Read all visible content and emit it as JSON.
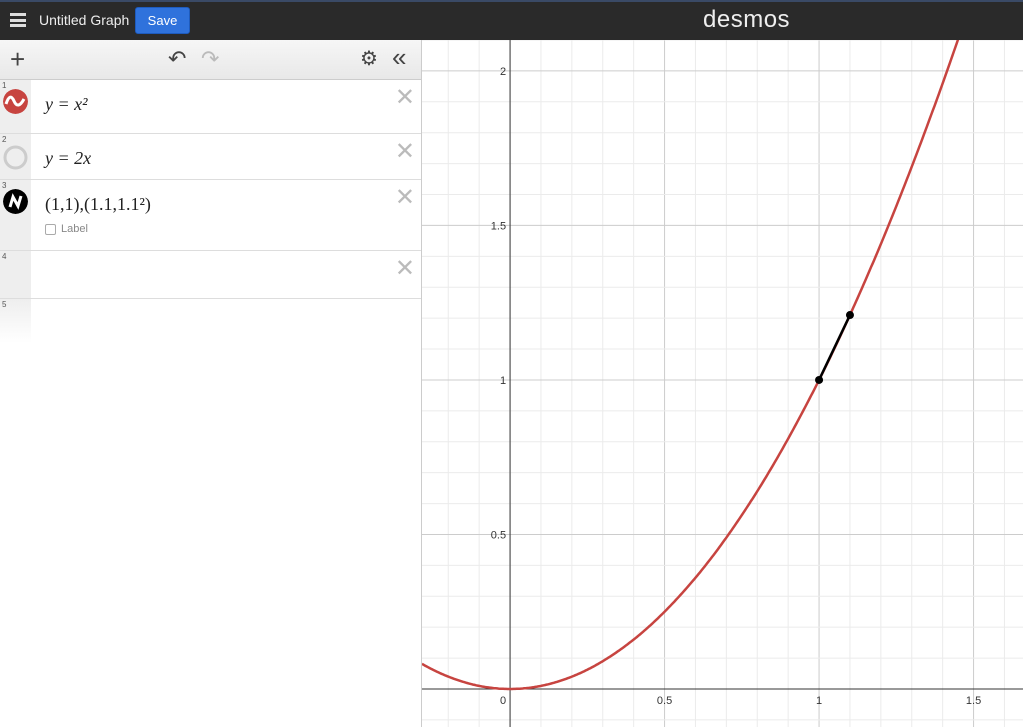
{
  "header": {
    "title": "Untitled Graph",
    "save_label": "Save",
    "logo": "desmos"
  },
  "toolbar": {
    "add": "+",
    "undo": "↶",
    "redo": "↷",
    "settings": "⚙",
    "collapse": "«"
  },
  "expressions": [
    {
      "n": "1",
      "latex": "y = x²",
      "color": "#c74440",
      "icon": "wave-icon"
    },
    {
      "n": "2",
      "latex": "y  =  2x",
      "color": "#cccccc",
      "icon": "hidden-circle-icon"
    },
    {
      "n": "3",
      "latex": "(1,1),(1.1,1.1²)",
      "color": "#000000",
      "icon": "points-icon",
      "label_checkbox": "Label",
      "checked": false
    },
    {
      "n": "4",
      "latex": ""
    },
    {
      "n": "5",
      "latex": ""
    }
  ],
  "chart_data": {
    "type": "line",
    "xlim": [
      -0.285,
      1.66
    ],
    "ylim": [
      -0.123,
      2.1
    ],
    "x_ticks": [
      "0",
      "0.5",
      "1",
      "1.5"
    ],
    "y_ticks": [
      "0.5",
      "1",
      "1.5",
      "2"
    ],
    "grid": true,
    "series": [
      {
        "expr": "y=x^2",
        "color": "#c74440"
      },
      {
        "points": [
          [
            1,
            1
          ],
          [
            1.1,
            1.21
          ]
        ],
        "color": "#000000"
      }
    ]
  }
}
